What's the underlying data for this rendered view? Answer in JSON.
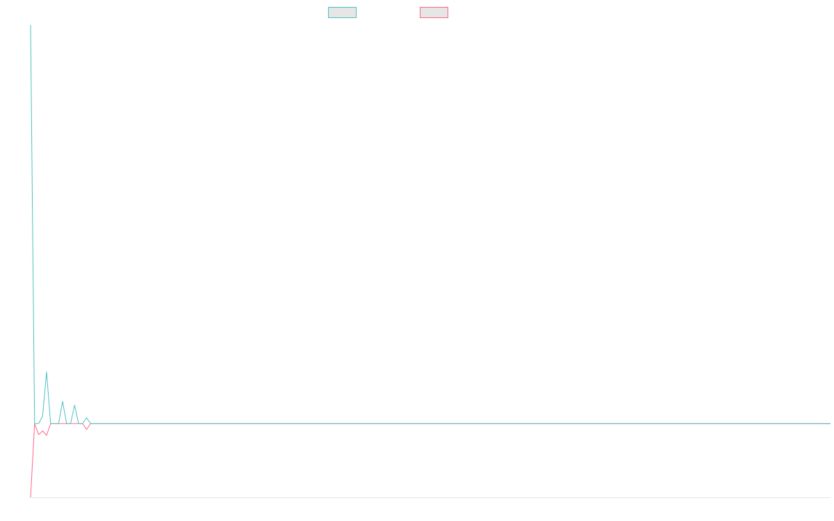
{
  "chart_data": {
    "type": "line",
    "title": "",
    "xlabel": "",
    "ylabel": "",
    "grid": false,
    "legend_position": "top-center",
    "x_range": [
      0,
      200
    ],
    "y_range": [
      -10,
      54
    ],
    "series": [
      {
        "color": "#4bc0c0",
        "fill_color": "#e6e6e6",
        "x": [
          0,
          1,
          2,
          3,
          4,
          5,
          6,
          7,
          8,
          9,
          10,
          11,
          12,
          13,
          14,
          15,
          200
        ],
        "y": [
          54,
          0,
          0,
          1,
          7,
          0,
          0,
          0,
          3,
          0,
          0,
          2.5,
          0,
          0,
          0.8,
          0,
          0
        ]
      },
      {
        "color": "#ff6384",
        "fill_color": "#e6e6e6",
        "x": [
          0,
          1,
          2,
          3,
          4,
          5,
          6,
          7,
          8,
          9,
          10,
          11,
          12,
          13,
          14,
          15,
          200
        ],
        "y": [
          -10,
          0,
          -1.5,
          -1,
          -1.6,
          0,
          0,
          0,
          0,
          0,
          0,
          0,
          0,
          0,
          -0.8,
          0,
          0
        ]
      }
    ]
  }
}
